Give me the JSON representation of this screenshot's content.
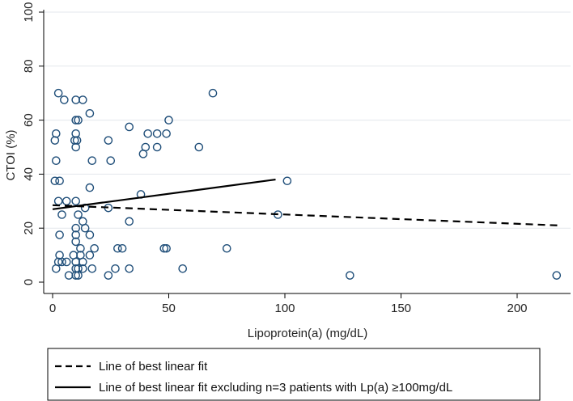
{
  "chart_data": {
    "type": "scatter",
    "title": "",
    "xlabel": "Lipoprotein(a) (mg/dL)",
    "ylabel": "CTOI (%)",
    "xlim": [
      0,
      220
    ],
    "ylim": [
      0,
      100
    ],
    "x_ticks": [
      0,
      50,
      100,
      150,
      200
    ],
    "y_ticks": [
      0,
      20,
      40,
      60,
      80,
      100
    ],
    "grid": "horizontal",
    "marker_color": "#1f4e79",
    "points": [
      {
        "x": 2.5,
        "y": 70
      },
      {
        "x": 5,
        "y": 67.5
      },
      {
        "x": 10,
        "y": 67.5
      },
      {
        "x": 13,
        "y": 67.5
      },
      {
        "x": 69,
        "y": 70
      },
      {
        "x": 16,
        "y": 62.5
      },
      {
        "x": 10,
        "y": 60
      },
      {
        "x": 11,
        "y": 60
      },
      {
        "x": 50,
        "y": 60
      },
      {
        "x": 33,
        "y": 57.5
      },
      {
        "x": 1.5,
        "y": 55
      },
      {
        "x": 10,
        "y": 55
      },
      {
        "x": 41,
        "y": 55
      },
      {
        "x": 45,
        "y": 55
      },
      {
        "x": 49,
        "y": 55
      },
      {
        "x": 1,
        "y": 52.5
      },
      {
        "x": 9.5,
        "y": 52.5
      },
      {
        "x": 10.5,
        "y": 52.5
      },
      {
        "x": 24,
        "y": 52.5
      },
      {
        "x": 10,
        "y": 50
      },
      {
        "x": 40,
        "y": 50
      },
      {
        "x": 45,
        "y": 50
      },
      {
        "x": 63,
        "y": 50
      },
      {
        "x": 39,
        "y": 47.5
      },
      {
        "x": 1.5,
        "y": 45
      },
      {
        "x": 17,
        "y": 45
      },
      {
        "x": 25,
        "y": 45
      },
      {
        "x": 1,
        "y": 37.5
      },
      {
        "x": 3,
        "y": 37.5
      },
      {
        "x": 101,
        "y": 37.5
      },
      {
        "x": 16,
        "y": 35
      },
      {
        "x": 38,
        "y": 32.5
      },
      {
        "x": 2.5,
        "y": 30
      },
      {
        "x": 6,
        "y": 30
      },
      {
        "x": 10,
        "y": 30
      },
      {
        "x": 14,
        "y": 27.5
      },
      {
        "x": 24,
        "y": 27.5
      },
      {
        "x": 4,
        "y": 25
      },
      {
        "x": 11,
        "y": 25
      },
      {
        "x": 97,
        "y": 25
      },
      {
        "x": 13,
        "y": 22.5
      },
      {
        "x": 33,
        "y": 22.5
      },
      {
        "x": 10,
        "y": 20
      },
      {
        "x": 14,
        "y": 20
      },
      {
        "x": 3,
        "y": 17.5
      },
      {
        "x": 10,
        "y": 17.5
      },
      {
        "x": 16,
        "y": 17.5
      },
      {
        "x": 10,
        "y": 15
      },
      {
        "x": 12,
        "y": 12.5
      },
      {
        "x": 18,
        "y": 12.5
      },
      {
        "x": 28,
        "y": 12.5
      },
      {
        "x": 30,
        "y": 12.5
      },
      {
        "x": 48,
        "y": 12.5
      },
      {
        "x": 49,
        "y": 12.5
      },
      {
        "x": 75,
        "y": 12.5
      },
      {
        "x": 3,
        "y": 10
      },
      {
        "x": 9,
        "y": 10
      },
      {
        "x": 12,
        "y": 10
      },
      {
        "x": 16,
        "y": 10
      },
      {
        "x": 2.5,
        "y": 7.5
      },
      {
        "x": 4,
        "y": 7.5
      },
      {
        "x": 6,
        "y": 7.5
      },
      {
        "x": 10,
        "y": 7.5
      },
      {
        "x": 13,
        "y": 7.5
      },
      {
        "x": 1.5,
        "y": 5
      },
      {
        "x": 10,
        "y": 5
      },
      {
        "x": 11,
        "y": 5
      },
      {
        "x": 13,
        "y": 5
      },
      {
        "x": 17,
        "y": 5
      },
      {
        "x": 27,
        "y": 5
      },
      {
        "x": 33,
        "y": 5
      },
      {
        "x": 56,
        "y": 5
      },
      {
        "x": 7,
        "y": 2.5
      },
      {
        "x": 10,
        "y": 2.5
      },
      {
        "x": 11,
        "y": 2.5
      },
      {
        "x": 24,
        "y": 2.5
      },
      {
        "x": 128,
        "y": 2.5
      },
      {
        "x": 217,
        "y": 2.5
      }
    ],
    "series": [
      {
        "name": "Line of best linear fit",
        "style": "dashed",
        "color": "#000000",
        "x": [
          0,
          218
        ],
        "y": [
          28.5,
          21
        ]
      },
      {
        "name": "Line of best linear fit excluding n=3 patients with Lp(a) ≥100mg/dL",
        "style": "solid",
        "color": "#000000",
        "x": [
          0,
          96
        ],
        "y": [
          27,
          38
        ]
      }
    ],
    "legend": {
      "placement": "bottom",
      "entries": [
        "Line of best linear fit",
        "Line of best linear fit excluding n=3 patients with Lp(a) ≥100mg/dL"
      ]
    }
  }
}
